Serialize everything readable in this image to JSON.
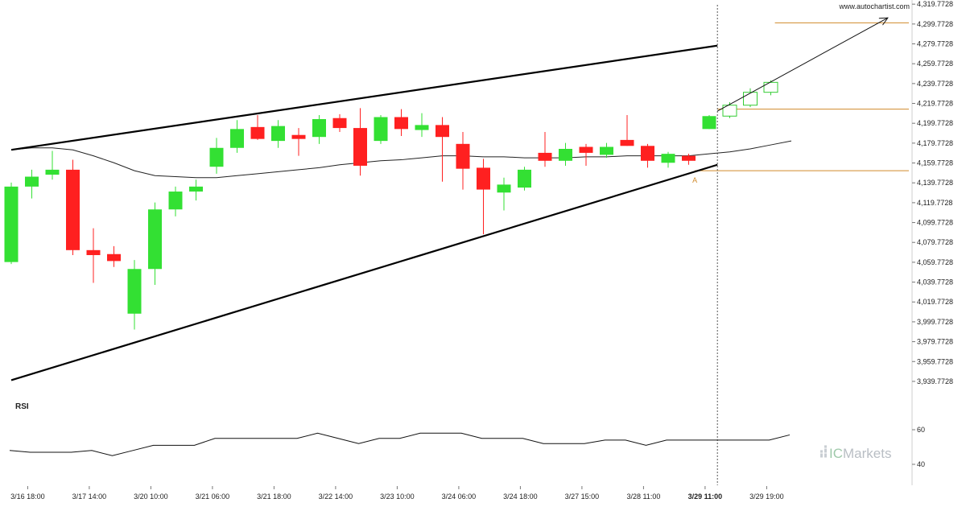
{
  "site": "www.autochartist.com",
  "logo": {
    "prefix": "IC",
    "suffix": "Markets"
  },
  "colors": {
    "up": "#33e033",
    "down": "#ff2020",
    "projection": "#33cc33",
    "level": "#d08a2a",
    "trend": "#000000",
    "ma": "#222222"
  },
  "chart_data": {
    "type": "candlestick",
    "title": "",
    "ylim": [
      3930,
      4325
    ],
    "y_ticks": [
      "4,319.7728",
      "4,299.7728",
      "4,279.7728",
      "4,259.7728",
      "4,239.7728",
      "4,219.7728",
      "4,199.7728",
      "4,179.7728",
      "4,159.7728",
      "4,139.7728",
      "4,119.7728",
      "4,099.7728",
      "4,079.7728",
      "4,059.7728",
      "4,039.7728",
      "4,019.7728",
      "3,999.7728",
      "3,979.7728",
      "3,959.7728",
      "3,939.7728"
    ],
    "y_tick_values": [
      4319.7728,
      4299.7728,
      4279.7728,
      4259.7728,
      4239.7728,
      4219.7728,
      4199.7728,
      4179.7728,
      4159.7728,
      4139.7728,
      4119.7728,
      4099.7728,
      4079.7728,
      4059.7728,
      4039.7728,
      4019.7728,
      3999.7728,
      3979.7728,
      3959.7728,
      3939.7728
    ],
    "x_ticks": [
      {
        "label": "3/16 18:00",
        "bar": 0.8
      },
      {
        "label": "3/17 14:00",
        "bar": 3.8
      },
      {
        "label": "3/20 10:00",
        "bar": 6.8
      },
      {
        "label": "3/21 06:00",
        "bar": 9.8
      },
      {
        "label": "3/21 18:00",
        "bar": 12.8
      },
      {
        "label": "3/22 14:00",
        "bar": 15.8
      },
      {
        "label": "3/23 10:00",
        "bar": 18.8
      },
      {
        "label": "3/24 06:00",
        "bar": 21.8
      },
      {
        "label": "3/24 18:00",
        "bar": 24.8
      },
      {
        "label": "3/27 15:00",
        "bar": 27.8
      },
      {
        "label": "3/28 11:00",
        "bar": 30.8
      },
      {
        "label": "3/29 11:00",
        "bar": 33.8,
        "bold": true
      },
      {
        "label": "3/29 19:00",
        "bar": 36.8
      }
    ],
    "candles": [
      {
        "o": 4060,
        "h": 4140,
        "l": 4058,
        "c": 4136
      },
      {
        "o": 4136,
        "h": 4153,
        "l": 4124,
        "c": 4146
      },
      {
        "o": 4148,
        "h": 4172,
        "l": 4143,
        "c": 4153
      },
      {
        "o": 4153,
        "h": 4163,
        "l": 4067,
        "c": 4072
      },
      {
        "o": 4072,
        "h": 4094,
        "l": 4039,
        "c": 4067
      },
      {
        "o": 4068,
        "h": 4076,
        "l": 4055,
        "c": 4061
      },
      {
        "o": 4008,
        "h": 4062,
        "l": 3992,
        "c": 4053
      },
      {
        "o": 4053,
        "h": 4120,
        "l": 4037,
        "c": 4113
      },
      {
        "o": 4113,
        "h": 4136,
        "l": 4106,
        "c": 4131
      },
      {
        "o": 4131,
        "h": 4143,
        "l": 4122,
        "c": 4136
      },
      {
        "o": 4156,
        "h": 4185,
        "l": 4149,
        "c": 4175
      },
      {
        "o": 4175,
        "h": 4203,
        "l": 4170,
        "c": 4194
      },
      {
        "o": 4196,
        "h": 4208,
        "l": 4183,
        "c": 4184
      },
      {
        "o": 4182,
        "h": 4203,
        "l": 4175,
        "c": 4197
      },
      {
        "o": 4188,
        "h": 4195,
        "l": 4167,
        "c": 4184
      },
      {
        "o": 4186,
        "h": 4208,
        "l": 4179,
        "c": 4204
      },
      {
        "o": 4205,
        "h": 4209,
        "l": 4191,
        "c": 4195
      },
      {
        "o": 4195,
        "h": 4215,
        "l": 4147,
        "c": 4157
      },
      {
        "o": 4182,
        "h": 4208,
        "l": 4179,
        "c": 4206
      },
      {
        "o": 4206,
        "h": 4214,
        "l": 4187,
        "c": 4194
      },
      {
        "o": 4193,
        "h": 4210,
        "l": 4186,
        "c": 4198
      },
      {
        "o": 4198,
        "h": 4206,
        "l": 4141,
        "c": 4186
      },
      {
        "o": 4179,
        "h": 4191,
        "l": 4133,
        "c": 4154
      },
      {
        "o": 4155,
        "h": 4164,
        "l": 4088,
        "c": 4133
      },
      {
        "o": 4130,
        "h": 4145,
        "l": 4112,
        "c": 4138
      },
      {
        "o": 4135,
        "h": 4156,
        "l": 4132,
        "c": 4153
      },
      {
        "o": 4170,
        "h": 4191,
        "l": 4156,
        "c": 4162
      },
      {
        "o": 4162,
        "h": 4180,
        "l": 4157,
        "c": 4174
      },
      {
        "o": 4176,
        "h": 4179,
        "l": 4157,
        "c": 4170
      },
      {
        "o": 4168,
        "h": 4180,
        "l": 4165,
        "c": 4176
      },
      {
        "o": 4183,
        "h": 4208,
        "l": 4177,
        "c": 4177
      },
      {
        "o": 4177,
        "h": 4179,
        "l": 4155,
        "c": 4162
      },
      {
        "o": 4160,
        "h": 4171,
        "l": 4155,
        "c": 4169
      },
      {
        "o": 4167,
        "h": 4169,
        "l": 4158,
        "c": 4162
      },
      {
        "o": 4194,
        "h": 4208,
        "l": 4194,
        "c": 4207
      }
    ],
    "projected_candles": [
      {
        "o": 4207,
        "h": 4221,
        "l": 4205,
        "c": 4218
      },
      {
        "o": 4218,
        "h": 4235,
        "l": 4216,
        "c": 4231
      },
      {
        "o": 4231,
        "h": 4243,
        "l": 4228,
        "c": 4241
      }
    ],
    "moving_average": [
      4173,
      4175,
      4175,
      4173,
      4167,
      4160,
      4152,
      4147,
      4146,
      4145,
      4145,
      4147,
      4149,
      4151,
      4153,
      4155,
      4158,
      4160,
      4162,
      4163,
      4165,
      4167,
      4167,
      4166,
      4166,
      4165,
      4165,
      4165,
      4166,
      4166,
      4167,
      4167,
      4167,
      4167,
      4169,
      4171,
      4174,
      4178,
      4182
    ],
    "trend_lines": [
      {
        "name": "upper-resistance",
        "from": {
          "bar": 0,
          "y": 4173
        },
        "to": {
          "bar": 34.4,
          "y": 4278
        }
      },
      {
        "name": "lower-support",
        "from": {
          "bar": 0,
          "y": 3941
        },
        "to": {
          "bar": 34.4,
          "y": 4158
        }
      }
    ],
    "forecast_arrow": {
      "from": {
        "bar": 34.4,
        "y": 4212
      },
      "to": {
        "bar": 42.7,
        "y": 4306
      }
    },
    "levels": [
      {
        "name": "target",
        "y": 4301,
        "from_bar": 37.2,
        "to_bar": 46.0
      },
      {
        "name": "mid",
        "y": 4214,
        "from_bar": 34.4,
        "to_bar": 46.0
      },
      {
        "name": "entry",
        "y": 4152,
        "from_bar": 33.3,
        "to_bar": 46.0
      }
    ],
    "marker": {
      "label": "A",
      "bar": 33.3,
      "y": 4143
    },
    "divider_bar": 34.4,
    "rsi": {
      "title": "RSI",
      "ylim": [
        35,
        65
      ],
      "ticks": [
        "60",
        "40"
      ],
      "tick_values": [
        60,
        40
      ],
      "values": [
        48,
        47,
        47,
        47,
        48,
        45,
        48,
        51,
        51,
        51,
        55,
        55,
        55,
        55,
        55,
        58,
        55,
        52,
        55,
        55,
        58,
        58,
        58,
        55,
        55,
        55,
        52,
        52,
        52,
        54,
        54,
        51,
        54,
        54,
        54,
        54,
        54,
        54,
        57
      ]
    }
  }
}
